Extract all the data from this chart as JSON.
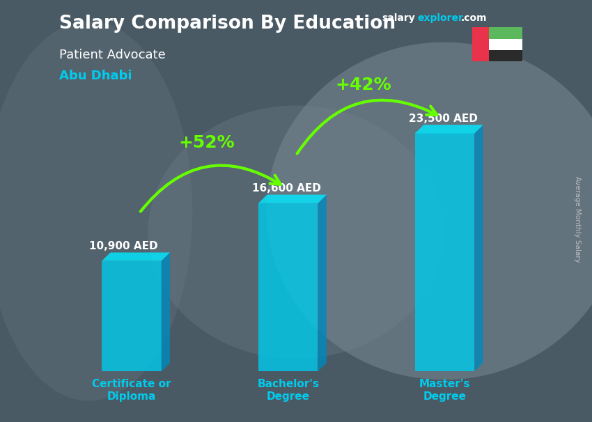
{
  "title": "Salary Comparison By Education",
  "subtitle": "Patient Advocate",
  "location": "Abu Dhabi",
  "ylabel": "Average Monthly Salary",
  "website_salary": "salary",
  "website_explorer": "explorer",
  "website_com": ".com",
  "categories": [
    "Certificate or\nDiploma",
    "Bachelor's\nDegree",
    "Master's\nDegree"
  ],
  "values": [
    10900,
    16600,
    23500
  ],
  "labels": [
    "10,900 AED",
    "16,600 AED",
    "23,500 AED"
  ],
  "pct_changes": [
    "+52%",
    "+42%"
  ],
  "bar_face_color": "#00c8e8",
  "bar_top_color": "#00e8ff",
  "bar_side_color": "#0088bb",
  "bar_alpha": 0.82,
  "bg_color": "#5a6a75",
  "title_color": "#ffffff",
  "subtitle_color": "#ffffff",
  "location_color": "#00ccee",
  "label_color": "#ffffff",
  "pct_color": "#66ff00",
  "category_color": "#00ccee",
  "ylabel_color": "#cccccc",
  "website_color1": "#ffffff",
  "website_color2": "#00ccee",
  "bar_width": 0.38,
  "ylim": [
    0,
    30000
  ],
  "bar_positions": [
    0,
    1,
    2
  ],
  "flag_red": "#e8334a",
  "flag_green": "#5cb85c",
  "flag_white": "#ffffff",
  "flag_black": "#2a2a2a"
}
